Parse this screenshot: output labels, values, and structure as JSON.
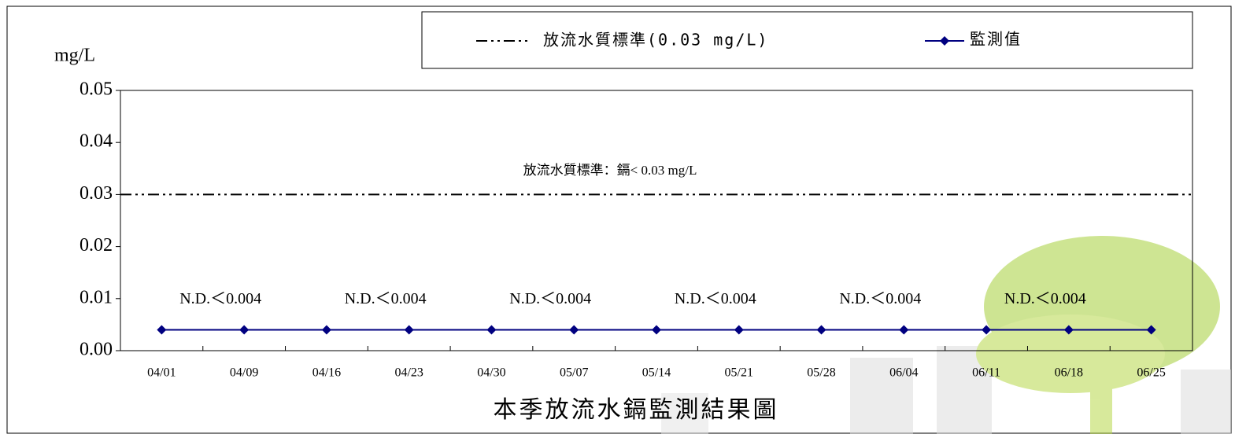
{
  "chart_data": {
    "type": "line",
    "title": "本季放流水鎘監測結果圖",
    "y_label": "mg/L",
    "categories": [
      "04/01",
      "04/09",
      "04/16",
      "04/23",
      "04/30",
      "05/07",
      "05/14",
      "05/21",
      "05/28",
      "06/04",
      "06/11",
      "06/18",
      "06/25"
    ],
    "series": [
      {
        "name": "監測值",
        "color": "#000080",
        "values": [
          0.004,
          0.004,
          0.004,
          0.004,
          0.004,
          0.004,
          0.004,
          0.004,
          0.004,
          0.004,
          0.004,
          0.004,
          0.004
        ],
        "value_labels": [
          null,
          "N.D.＜0.004",
          null,
          "N.D.＜0.004",
          null,
          "N.D.＜0.004",
          null,
          "N.D.＜0.004",
          null,
          "N.D.＜0.004",
          null,
          "N.D.＜0.004",
          null
        ]
      }
    ],
    "reference_line": {
      "name": "放流水質標準(0.03 mg/L)",
      "value": 0.03,
      "color": "#000000",
      "label": "放流水質標準：鎘< 0.03 mg/L"
    },
    "ylim": [
      0,
      0.05
    ],
    "yticks": [
      {
        "value": 0,
        "label": "0.00"
      },
      0.01,
      0.02,
      0.03,
      0.04,
      0.05
    ]
  }
}
